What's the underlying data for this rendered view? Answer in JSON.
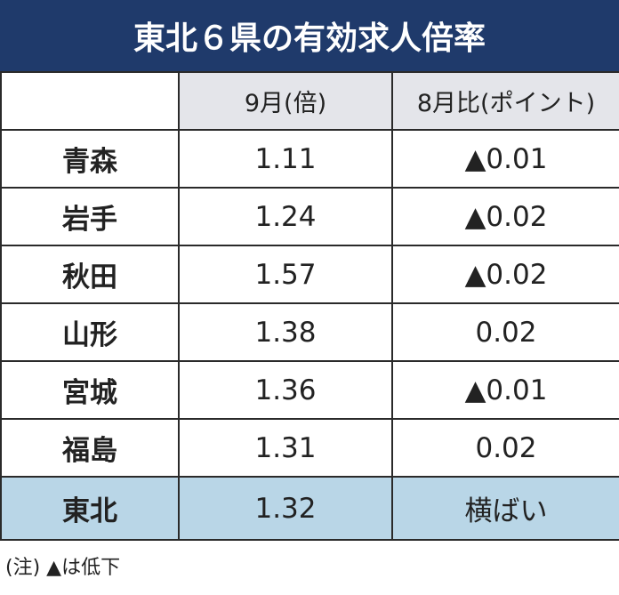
{
  "title": "東北６県の有効求人倍率",
  "table": {
    "header": [
      "9月(倍)",
      "8月比(ポイント)"
    ],
    "rows": [
      [
        "青森",
        "1.11",
        "▲0.01"
      ],
      [
        "岩手",
        "1.24",
        "▲0.02"
      ],
      [
        "秋田",
        "1.57",
        "▲0.02"
      ],
      [
        "山形",
        "1.38",
        "0.02"
      ],
      [
        "宮城",
        "1.36",
        "▲0.01"
      ],
      [
        "福島",
        "1.31",
        "0.02"
      ],
      [
        "東北",
        "1.32",
        "横ばい"
      ]
    ]
  },
  "note": "(注) ▲は低下"
}
